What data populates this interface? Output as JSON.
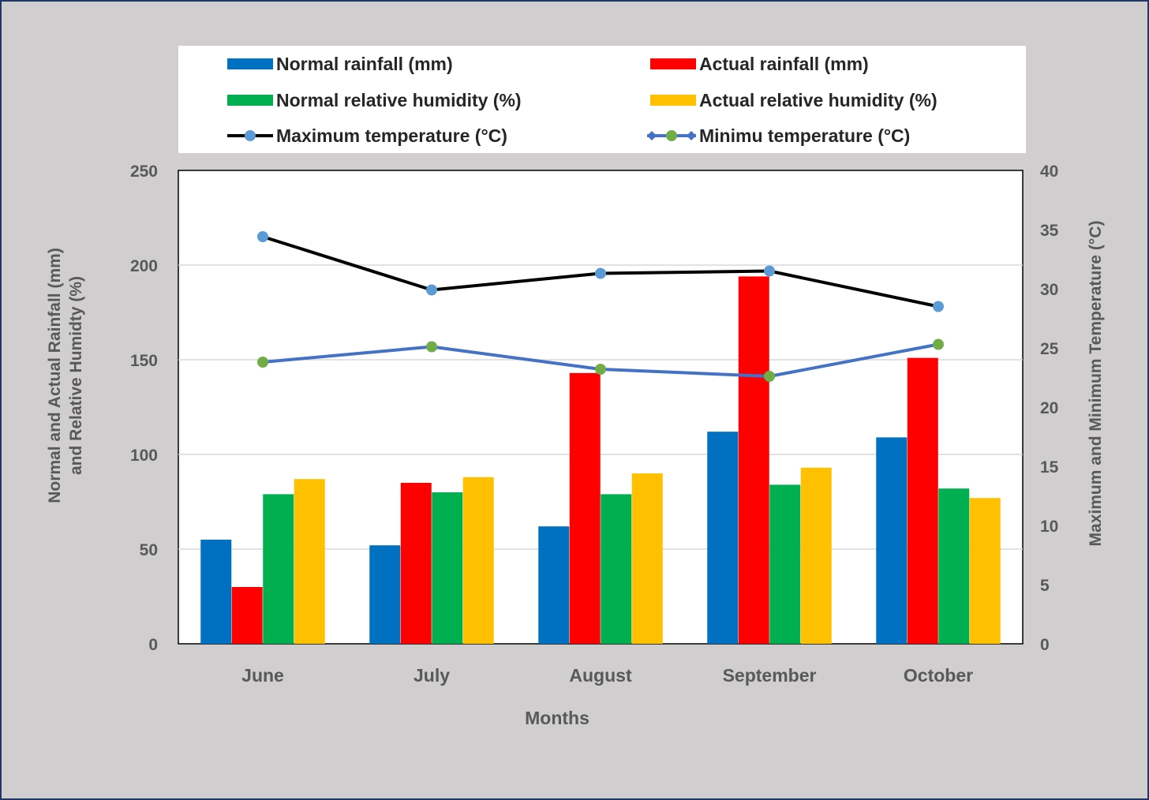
{
  "chart_data": {
    "type": "bar",
    "categories": [
      "June",
      "July",
      "August",
      "September",
      "October"
    ],
    "xlabel": "Months",
    "ylabel": "Normal and Actual Rainfall (mm) and Relative Humidty (%)",
    "ylabel_lines": [
      "Normal and Actual Rainfall (mm)",
      "and Relative Humidty (%)"
    ],
    "y2label": "Maximum and Minimum Temperature (°C)",
    "ylim": [
      0,
      250
    ],
    "y_ticks": [
      0,
      50,
      100,
      150,
      200,
      250
    ],
    "y2lim": [
      0,
      40
    ],
    "y2_ticks": [
      0,
      5,
      10,
      15,
      20,
      25,
      30,
      35,
      40
    ],
    "grid": true,
    "legend_placement": "top",
    "bar_series": [
      {
        "name": "Normal rainfall (mm)",
        "color": "#0070c0",
        "values": [
          55,
          52,
          62,
          112,
          109
        ]
      },
      {
        "name": "Actual rainfall (mm)",
        "color": "#ff0000",
        "values": [
          30,
          85,
          143,
          194,
          151
        ]
      },
      {
        "name": "Normal relative humidity (%)",
        "color": "#00b050",
        "values": [
          79,
          80,
          79,
          84,
          82
        ]
      },
      {
        "name": "Actual relative humidity (%)",
        "color": "#ffc000",
        "values": [
          87,
          88,
          90,
          93,
          77
        ]
      }
    ],
    "line_series": [
      {
        "name": "Maximum temperature (°C)",
        "line_color": "#000000",
        "marker_color": "#5b9bd5",
        "axis": "secondary",
        "values": [
          34.4,
          29.9,
          31.3,
          31.5,
          28.5
        ]
      },
      {
        "name": "Minimu temperature (°C)",
        "line_color": "#4472c4",
        "marker_color": "#70ad47",
        "axis": "secondary",
        "values": [
          23.8,
          25.1,
          23.2,
          22.6,
          25.3
        ]
      }
    ]
  }
}
